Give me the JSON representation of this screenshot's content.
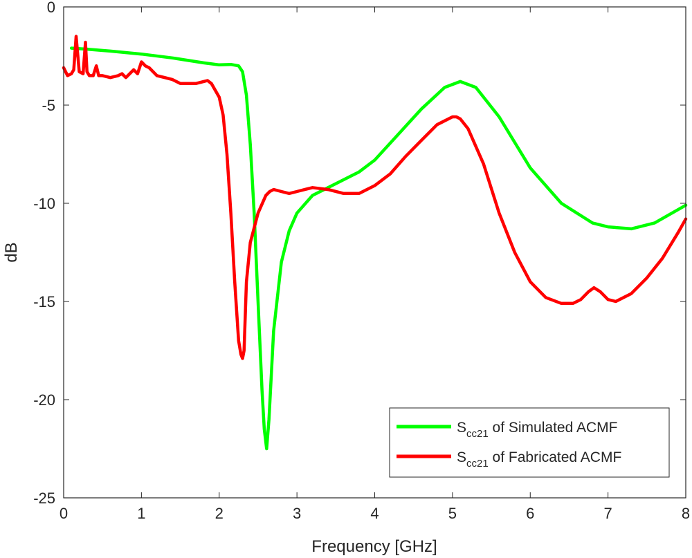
{
  "chart_data": {
    "type": "line",
    "title": "",
    "xlabel": "Frequency [GHz]",
    "ylabel": "dB",
    "xlim": [
      0,
      8
    ],
    "ylim": [
      -25,
      0
    ],
    "xticks": [
      0,
      1,
      2,
      3,
      4,
      5,
      6,
      7,
      8
    ],
    "yticks": [
      0,
      -5,
      -10,
      -15,
      -20,
      -25
    ],
    "grid": false,
    "legend_position": "bottom-right",
    "series": [
      {
        "name": "Simulated ACMF",
        "legend_main": "S",
        "legend_sub": "cc21",
        "legend_suffix": " of Simulated ACMF",
        "color": "#00ff00",
        "x": [
          0.1,
          0.3,
          0.6,
          1.0,
          1.4,
          1.8,
          2.0,
          2.15,
          2.25,
          2.3,
          2.35,
          2.4,
          2.45,
          2.5,
          2.55,
          2.58,
          2.61,
          2.64,
          2.7,
          2.8,
          2.9,
          3.0,
          3.2,
          3.5,
          3.8,
          4.0,
          4.3,
          4.6,
          4.9,
          5.1,
          5.3,
          5.6,
          6.0,
          6.4,
          6.8,
          7.0,
          7.3,
          7.6,
          8.0
        ],
        "values": [
          -2.1,
          -2.15,
          -2.25,
          -2.4,
          -2.6,
          -2.85,
          -2.95,
          -2.93,
          -3.0,
          -3.3,
          -4.5,
          -7.0,
          -10.5,
          -15.0,
          -19.5,
          -21.5,
          -22.5,
          -21.0,
          -16.5,
          -13.0,
          -11.4,
          -10.5,
          -9.6,
          -9.0,
          -8.4,
          -7.8,
          -6.5,
          -5.2,
          -4.1,
          -3.8,
          -4.1,
          -5.6,
          -8.2,
          -10.0,
          -11.0,
          -11.2,
          -11.3,
          -11.0,
          -10.1
        ]
      },
      {
        "name": "Fabricated ACMF",
        "legend_main": "S",
        "legend_sub": "cc21",
        "legend_suffix": " of Fabricated ACMF",
        "color": "#ff0000",
        "x": [
          0.0,
          0.05,
          0.1,
          0.13,
          0.16,
          0.2,
          0.25,
          0.28,
          0.3,
          0.33,
          0.38,
          0.42,
          0.45,
          0.5,
          0.6,
          0.7,
          0.75,
          0.8,
          0.9,
          0.95,
          1.0,
          1.05,
          1.1,
          1.2,
          1.3,
          1.4,
          1.5,
          1.6,
          1.7,
          1.8,
          1.85,
          1.9,
          2.0,
          2.05,
          2.1,
          2.15,
          2.2,
          2.25,
          2.28,
          2.3,
          2.32,
          2.35,
          2.4,
          2.5,
          2.6,
          2.65,
          2.7,
          2.75,
          2.8,
          2.9,
          3.0,
          3.1,
          3.2,
          3.4,
          3.6,
          3.8,
          4.0,
          4.2,
          4.4,
          4.6,
          4.8,
          5.0,
          5.05,
          5.1,
          5.2,
          5.4,
          5.6,
          5.8,
          6.0,
          6.2,
          6.4,
          6.55,
          6.65,
          6.75,
          6.82,
          6.9,
          7.0,
          7.1,
          7.3,
          7.5,
          7.7,
          7.9,
          8.0
        ],
        "values": [
          -3.1,
          -3.5,
          -3.4,
          -3.2,
          -1.5,
          -3.3,
          -3.4,
          -1.8,
          -3.3,
          -3.5,
          -3.5,
          -3.0,
          -3.5,
          -3.5,
          -3.6,
          -3.5,
          -3.4,
          -3.6,
          -3.2,
          -3.4,
          -2.8,
          -3.0,
          -3.1,
          -3.5,
          -3.6,
          -3.7,
          -3.9,
          -3.9,
          -3.9,
          -3.8,
          -3.75,
          -3.9,
          -4.6,
          -5.5,
          -7.5,
          -10.5,
          -14.0,
          -17.0,
          -17.7,
          -17.9,
          -17.5,
          -14.0,
          -12.0,
          -10.5,
          -9.6,
          -9.4,
          -9.3,
          -9.35,
          -9.4,
          -9.5,
          -9.4,
          -9.3,
          -9.2,
          -9.3,
          -9.5,
          -9.5,
          -9.1,
          -8.5,
          -7.6,
          -6.8,
          -6.0,
          -5.6,
          -5.6,
          -5.7,
          -6.2,
          -8.0,
          -10.5,
          -12.5,
          -14.0,
          -14.8,
          -15.1,
          -15.1,
          -14.9,
          -14.5,
          -14.3,
          -14.5,
          -14.9,
          -15.0,
          -14.6,
          -13.8,
          -12.8,
          -11.5,
          -10.8
        ]
      }
    ]
  }
}
